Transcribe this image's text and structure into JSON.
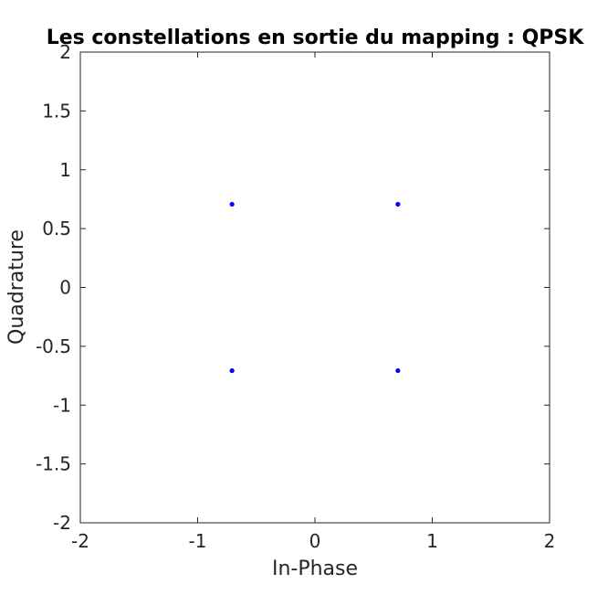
{
  "chart_data": {
    "type": "scatter",
    "title": "Les constellations en sortie du mapping : QPSK",
    "xlabel": "In-Phase",
    "ylabel": "Quadrature",
    "xlim": [
      -2,
      2
    ],
    "ylim": [
      -2,
      2
    ],
    "xticks": [
      -2,
      -1,
      0,
      1,
      2
    ],
    "xtick_labels": [
      "-2",
      "-1",
      "0",
      "1",
      "2"
    ],
    "yticks": [
      -2,
      -1.5,
      -1,
      -0.5,
      0,
      0.5,
      1,
      1.5,
      2
    ],
    "ytick_labels": [
      "-2",
      "-1.5",
      "-1",
      "-0.5",
      "0",
      "0.5",
      "1",
      "1.5",
      "2"
    ],
    "grid": false,
    "legend": "none",
    "series": [
      {
        "color": "#0000ff",
        "x": [
          -0.707,
          0.707,
          -0.707,
          0.707
        ],
        "y": [
          0.707,
          0.707,
          -0.707,
          -0.707
        ]
      }
    ]
  }
}
